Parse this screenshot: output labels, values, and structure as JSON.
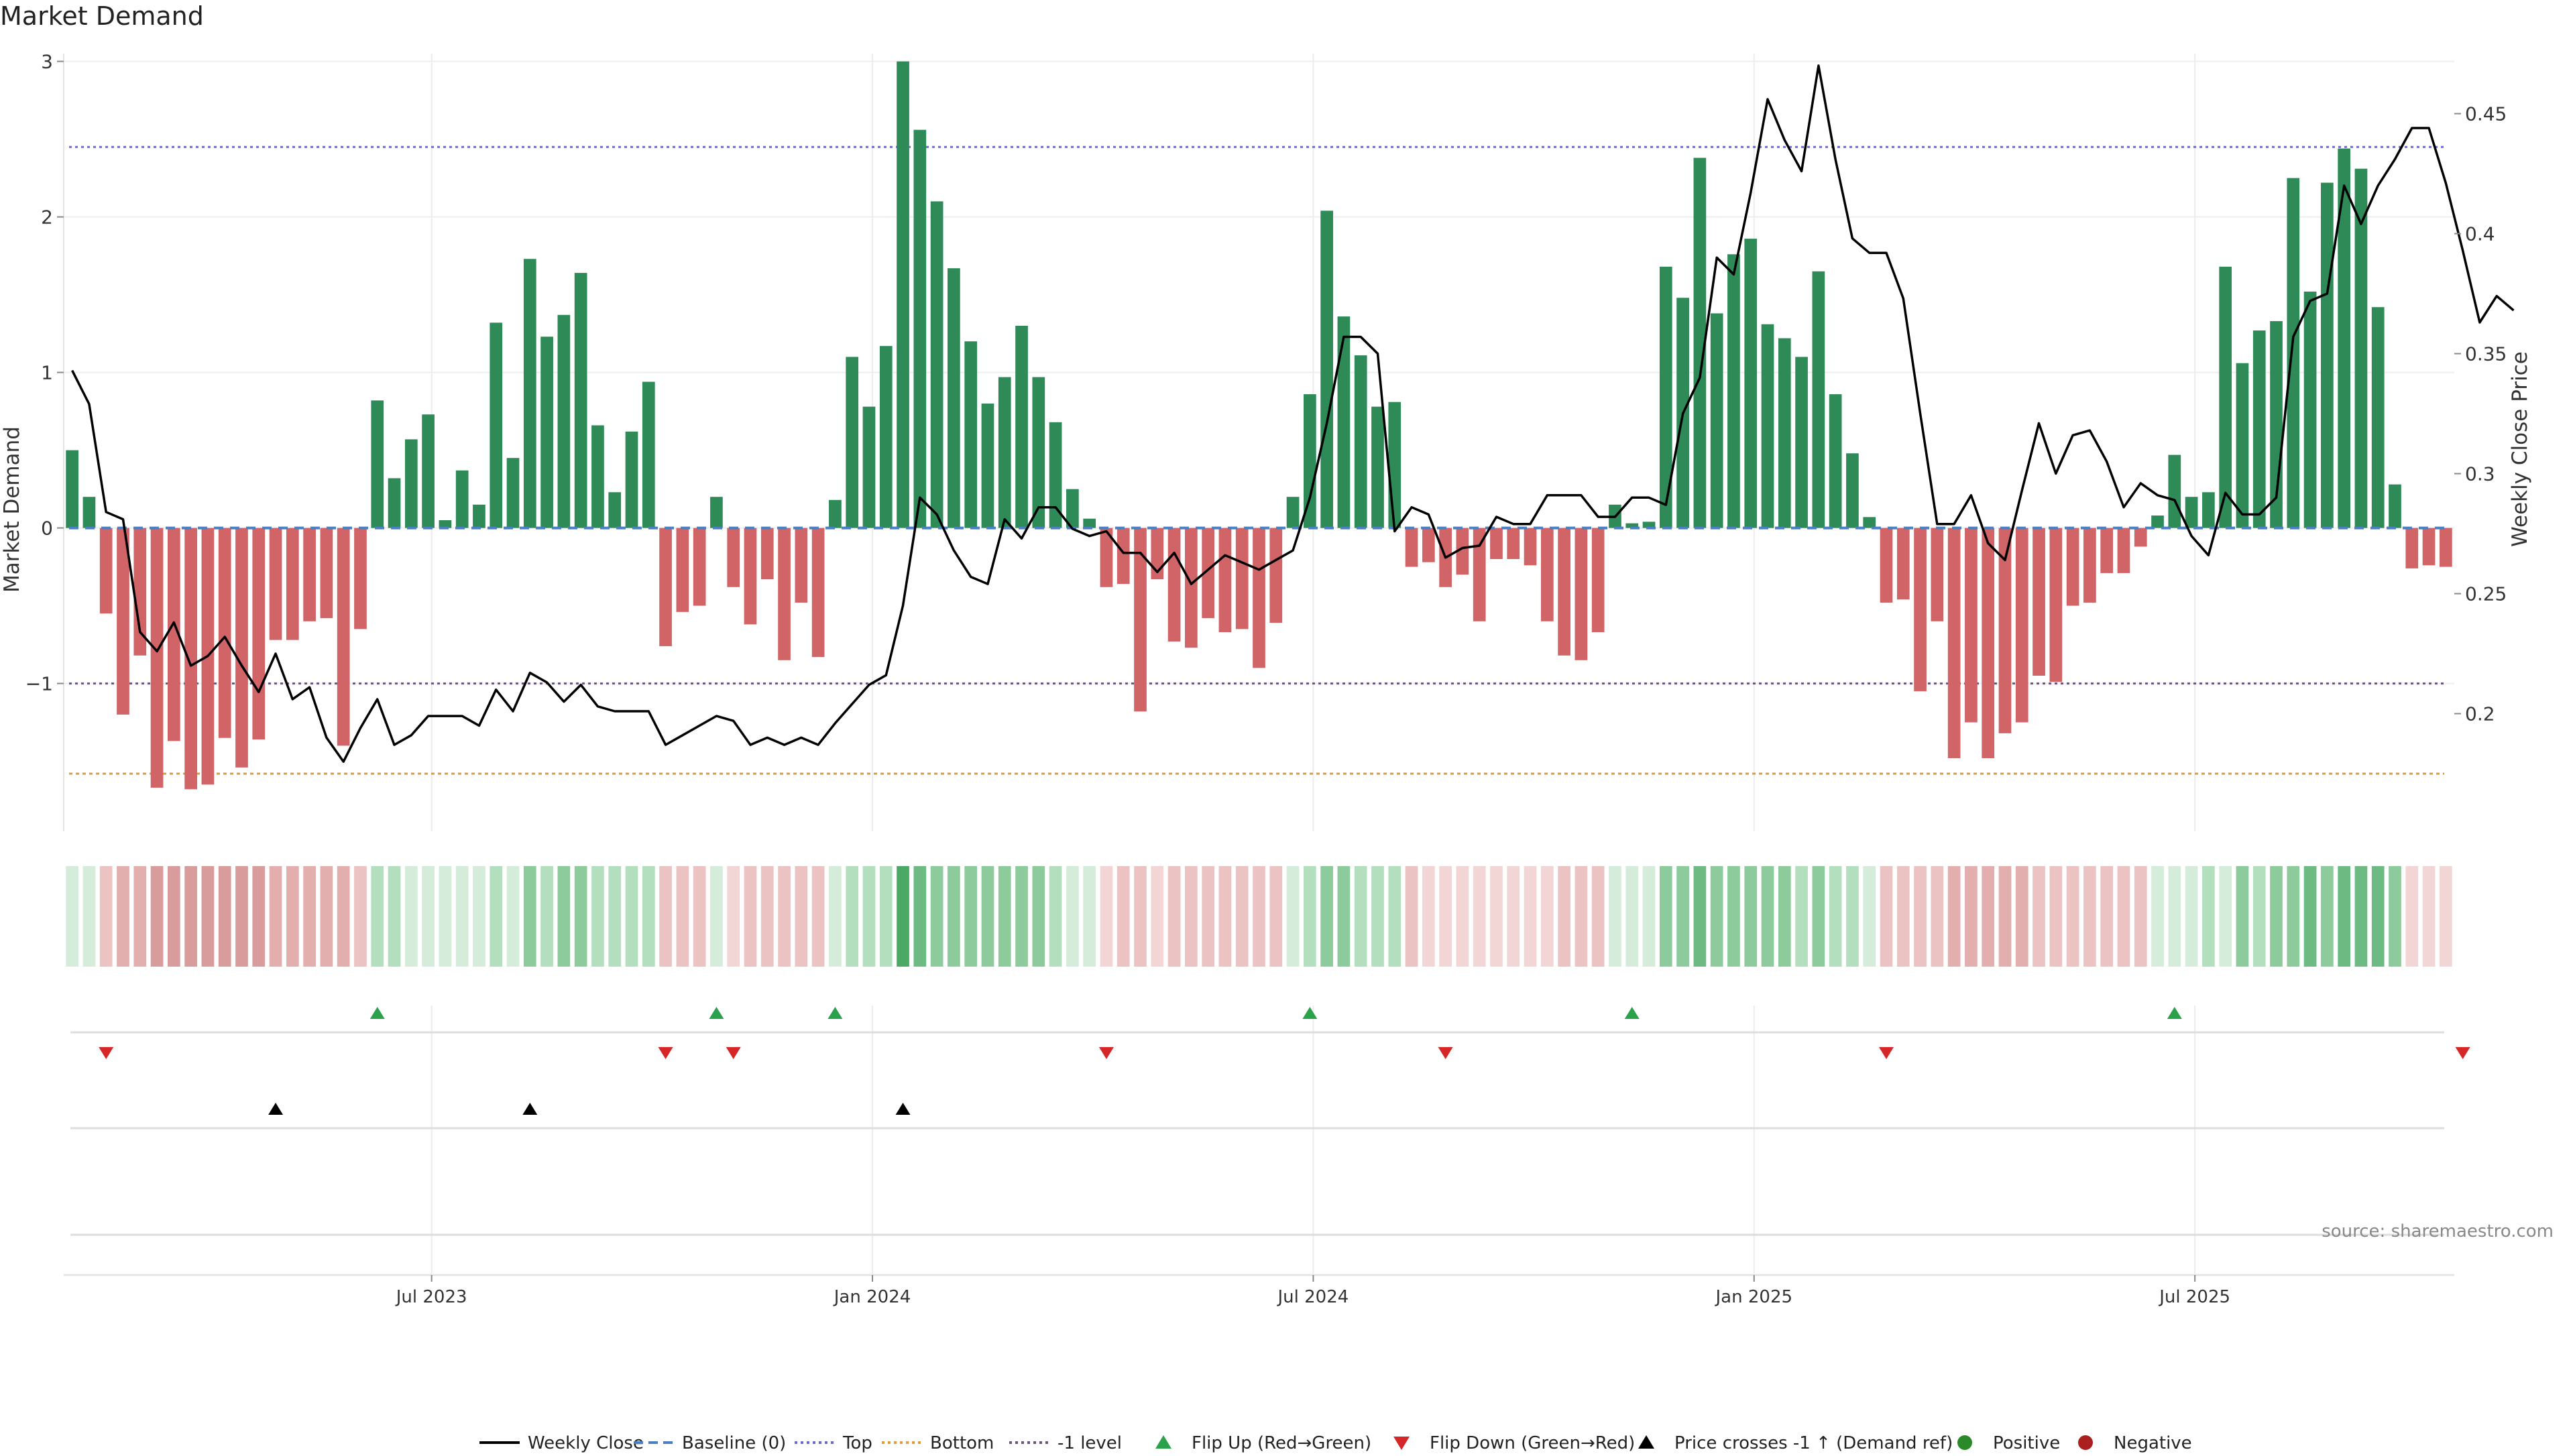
{
  "title": "Market Demand",
  "source": "source: sharemaestro.com",
  "chart_data": {
    "type": "bar",
    "title": "Market Demand",
    "ylabel_left": "Market Demand",
    "ylabel_right": "Weekly Close Price",
    "left_yticks": [
      "3",
      "2",
      "1",
      "0",
      "−1"
    ],
    "right_yticks": [
      "0.45",
      "0.4",
      "0.35",
      "0.3",
      "0.25",
      "0.2"
    ],
    "x_ticks": [
      "Jul 2023",
      "Jan 2024",
      "Jul 2024",
      "Jan 2025",
      "Jul 2025"
    ],
    "left_ylim": [
      -1.95,
      3.05
    ],
    "right_ylim": [
      0.151,
      0.475
    ],
    "reference_lines": {
      "top": 2.45,
      "bottom": -1.58,
      "minus_one": -1.0,
      "baseline": 0
    },
    "demand": [
      0.5,
      0.2,
      -0.55,
      -1.2,
      -0.82,
      -1.67,
      -1.37,
      -1.68,
      -1.65,
      -1.35,
      -1.54,
      -1.36,
      -0.72,
      -0.72,
      -0.6,
      -0.58,
      -1.4,
      -0.65,
      0.82,
      0.32,
      0.57,
      0.73,
      0.05,
      0.37,
      0.15,
      1.32,
      0.45,
      1.73,
      1.23,
      1.37,
      1.64,
      0.66,
      0.23,
      0.62,
      0.94,
      -0.76,
      -0.54,
      -0.5,
      0.2,
      -0.38,
      -0.62,
      -0.33,
      -0.85,
      -0.48,
      -0.83,
      0.18,
      1.1,
      0.78,
      1.17,
      3.0,
      2.56,
      2.1,
      1.67,
      1.2,
      0.8,
      0.97,
      1.3,
      0.97,
      0.68,
      0.25,
      0.06,
      -0.38,
      -0.36,
      -1.18,
      -0.33,
      -0.73,
      -0.77,
      -0.58,
      -0.67,
      -0.65,
      -0.9,
      -0.61,
      0.2,
      0.86,
      2.04,
      1.36,
      1.11,
      0.78,
      0.81,
      -0.25,
      -0.22,
      -0.38,
      -0.3,
      -0.6,
      -0.2,
      -0.2,
      -0.24,
      -0.6,
      -0.82,
      -0.85,
      -0.67,
      0.15,
      0.03,
      0.04,
      1.68,
      1.48,
      2.38,
      1.38,
      1.76,
      1.86,
      1.31,
      1.22,
      1.1,
      1.65,
      0.86,
      0.48,
      0.07,
      -0.48,
      -0.46,
      -1.05,
      -0.6,
      -1.48,
      -1.25,
      -1.48,
      -1.32,
      -1.25,
      -0.95,
      -0.99,
      -0.5,
      -0.48,
      -0.29,
      -0.29,
      -0.12,
      0.08,
      0.47,
      0.2,
      0.23,
      1.68,
      1.06,
      1.27,
      1.33,
      2.25,
      1.52,
      2.22,
      2.44,
      2.31,
      1.42,
      0.28,
      -0.26,
      -0.24,
      -0.25
    ],
    "weekly_close": [
      0.343,
      0.329,
      0.284,
      0.281,
      0.234,
      0.226,
      0.238,
      0.22,
      0.224,
      0.232,
      0.22,
      0.209,
      0.225,
      0.206,
      0.211,
      0.19,
      0.18,
      0.194,
      0.206,
      0.187,
      0.191,
      0.199,
      0.199,
      0.199,
      0.195,
      0.21,
      0.201,
      0.217,
      0.213,
      0.205,
      0.212,
      0.203,
      0.201,
      0.201,
      0.201,
      0.187,
      0.191,
      0.195,
      0.199,
      0.197,
      0.187,
      0.19,
      0.187,
      0.19,
      0.187,
      0.196,
      0.204,
      0.212,
      0.216,
      0.245,
      0.29,
      0.283,
      0.268,
      0.257,
      0.254,
      0.281,
      0.273,
      0.286,
      0.286,
      0.277,
      0.274,
      0.276,
      0.267,
      0.267,
      0.259,
      0.267,
      0.254,
      0.26,
      0.266,
      0.263,
      0.26,
      0.264,
      0.268,
      0.29,
      0.321,
      0.357,
      0.357,
      0.35,
      0.276,
      0.286,
      0.283,
      0.265,
      0.269,
      0.27,
      0.282,
      0.279,
      0.279,
      0.291,
      0.291,
      0.291,
      0.282,
      0.282,
      0.29,
      0.29,
      0.287,
      0.325,
      0.34,
      0.39,
      0.383,
      0.417,
      0.456,
      0.439,
      0.426,
      0.47,
      0.431,
      0.398,
      0.392,
      0.392,
      0.373,
      0.325,
      0.279,
      0.279,
      0.291,
      0.271,
      0.264,
      0.293,
      0.321,
      0.3,
      0.316,
      0.318,
      0.305,
      0.286,
      0.296,
      0.291,
      0.289,
      0.274,
      0.266,
      0.292,
      0.283,
      0.283,
      0.29,
      0.357,
      0.372,
      0.375,
      0.42,
      0.404,
      0.42,
      0.431,
      0.444,
      0.444,
      0.421,
      0.393,
      0.363,
      0.374,
      0.368
    ],
    "intensity": [
      1,
      1,
      2,
      3,
      3,
      4,
      4,
      4,
      4,
      4,
      4,
      4,
      3,
      3,
      3,
      3,
      3,
      2,
      2,
      2,
      1,
      1,
      1,
      1,
      1,
      2,
      1,
      3,
      2,
      3,
      3,
      2,
      2,
      2,
      2,
      2,
      2,
      2,
      1,
      1,
      2,
      2,
      2,
      2,
      2,
      1,
      2,
      2,
      2,
      5,
      4,
      3,
      3,
      3,
      3,
      3,
      3,
      3,
      2,
      1,
      1,
      1,
      2,
      2,
      1,
      2,
      2,
      2,
      2,
      2,
      2,
      2,
      1,
      2,
      3,
      3,
      2,
      2,
      2,
      2,
      1,
      1,
      1,
      1,
      1,
      1,
      1,
      1,
      2,
      2,
      2,
      1,
      1,
      1,
      3,
      3,
      4,
      3,
      3,
      3,
      3,
      3,
      2,
      3,
      2,
      2,
      1,
      2,
      2,
      2,
      2,
      3,
      3,
      3,
      3,
      3,
      2,
      2,
      2,
      2,
      2,
      2,
      2,
      1,
      1,
      1,
      2,
      1,
      3,
      2,
      3,
      3,
      4,
      3,
      4,
      4,
      4,
      3,
      1,
      1,
      1,
      1
    ],
    "flip_up_weeks": [
      18,
      38,
      45,
      73,
      92,
      124
    ],
    "flip_down_weeks": [
      2,
      35,
      39,
      61,
      81,
      107,
      141
    ],
    "price_cross_weeks": [
      12,
      27,
      49
    ],
    "x_tick_weeks": [
      21.7,
      47.7,
      73.7,
      99.7,
      125.7
    ],
    "colors": {
      "positive": "#2e8b57",
      "negative": "#d06466",
      "line": "#000000",
      "top": "#6b6bd1",
      "bottom": "#e39a3a",
      "minus_one": "#6b5580",
      "flip_up": "#2ca14b",
      "flip_down": "#d62728",
      "cross": "#000000",
      "positive_dot": "#2a8a2a",
      "negative_dot": "#aa2020"
    }
  },
  "legend": [
    {
      "label": "Weekly Close",
      "kind": "line",
      "color": "#000000"
    },
    {
      "label": "Baseline (0)",
      "kind": "dash",
      "color": "#4a7fc1"
    },
    {
      "label": "Top",
      "kind": "dot",
      "color": "#6b6bd1"
    },
    {
      "label": "Bottom",
      "kind": "dot",
      "color": "#e39a3a"
    },
    {
      "label": "-1 level",
      "kind": "dot",
      "color": "#6b5580"
    },
    {
      "label": "Flip Up (Red→Green)",
      "kind": "tri-up",
      "color": "#2ca14b"
    },
    {
      "label": "Flip Down (Green→Red)",
      "kind": "tri-down",
      "color": "#d62728"
    },
    {
      "label": "Price crosses -1 ↑ (Demand ref)",
      "kind": "tri-up",
      "color": "#000000"
    },
    {
      "label": "Positive",
      "kind": "circle",
      "color": "#2a8a2a"
    },
    {
      "label": "Negative",
      "kind": "circle",
      "color": "#aa2020"
    }
  ]
}
